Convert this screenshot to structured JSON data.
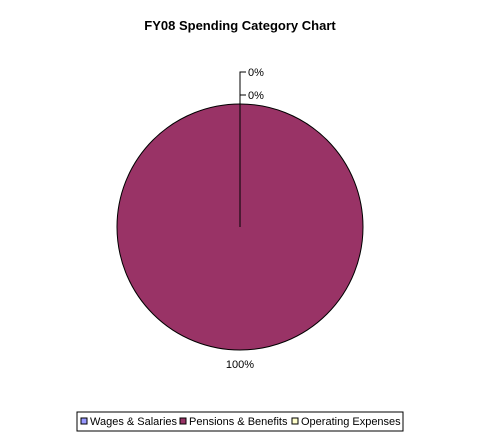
{
  "chart_data": {
    "type": "pie",
    "title": "FY08 Spending Category Chart",
    "slices": [
      {
        "label": "Wages & Salaries",
        "value": 0,
        "percent_label": "0%",
        "color": "#9999ff"
      },
      {
        "label": "Pensions & Benefits",
        "value": 100,
        "percent_label": "100%",
        "color": "#993366"
      },
      {
        "label": "Operating Expenses",
        "value": 0,
        "percent_label": "0%",
        "color": "#ffffcc"
      }
    ],
    "legend_position": "bottom"
  }
}
